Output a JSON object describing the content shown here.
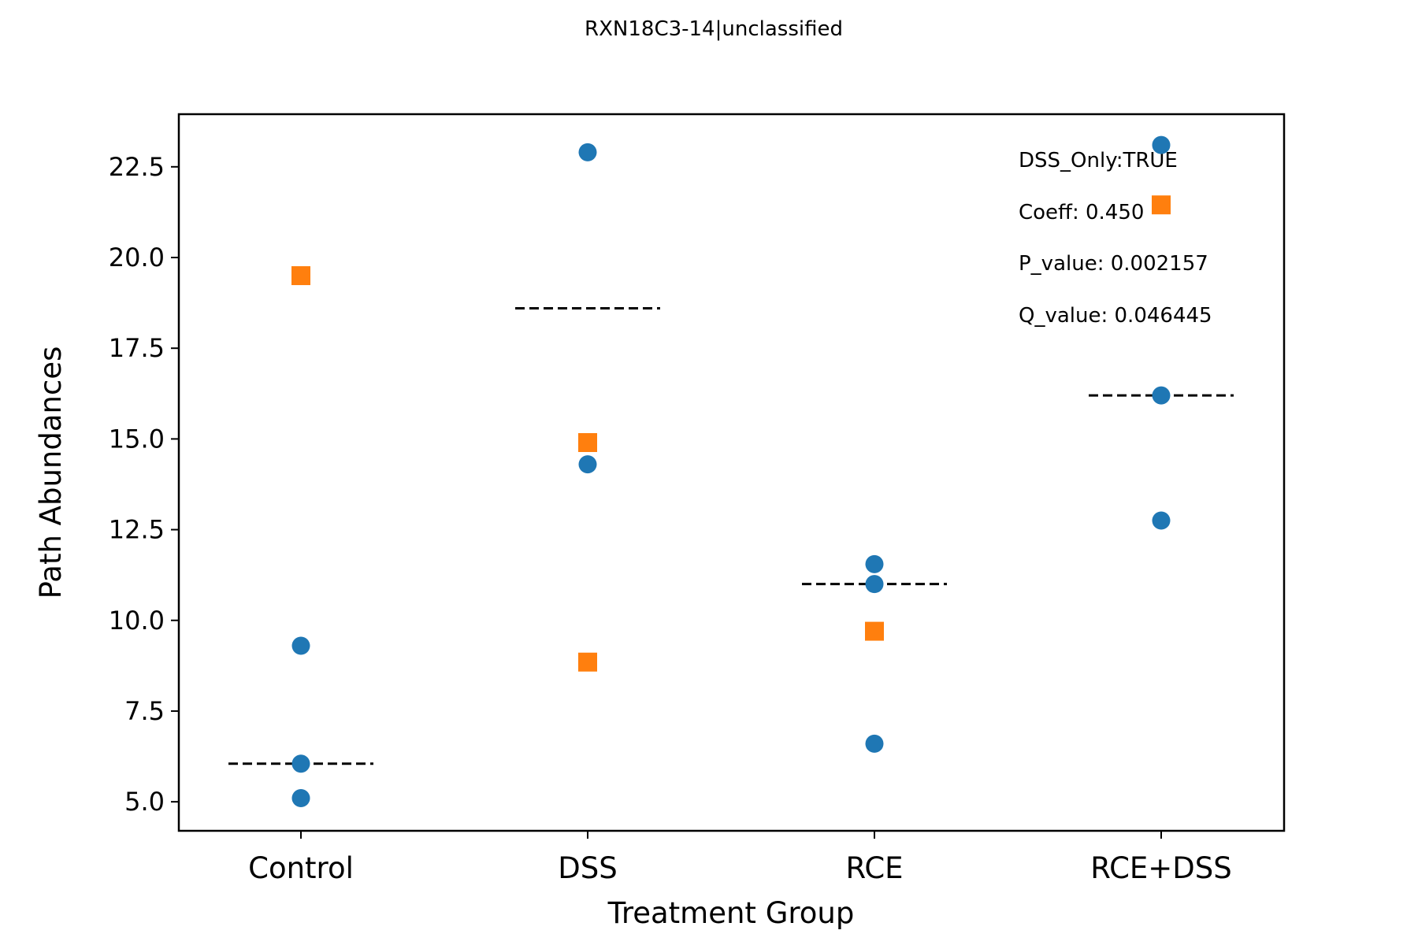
{
  "chart_data": {
    "type": "scatter",
    "title": "RXN18C3-14|unclassified",
    "xlabel": "Treatment Group",
    "ylabel": "Path Abundances",
    "categories": [
      "Control",
      "DSS",
      "RCE",
      "RCE+DSS"
    ],
    "ylim": [
      4.2,
      23.95
    ],
    "yticks": [
      "5.0",
      "7.5",
      "10.0",
      "12.5",
      "15.0",
      "17.5",
      "20.0",
      "22.5"
    ],
    "grid": false,
    "colors": {
      "circle": "#1f77b4",
      "square": "#ff7f0e",
      "mean_line": "#000000"
    },
    "series": [
      {
        "marker": "circle",
        "points": [
          {
            "category": "Control",
            "y": 9.3
          },
          {
            "category": "Control",
            "y": 6.05
          },
          {
            "category": "Control",
            "y": 5.1
          },
          {
            "category": "DSS",
            "y": 22.9
          },
          {
            "category": "DSS",
            "y": 14.3
          },
          {
            "category": "RCE",
            "y": 11.55
          },
          {
            "category": "RCE",
            "y": 11.0
          },
          {
            "category": "RCE",
            "y": 6.6
          },
          {
            "category": "RCE+DSS",
            "y": 23.1
          },
          {
            "category": "RCE+DSS",
            "y": 16.2
          },
          {
            "category": "RCE+DSS",
            "y": 12.75
          }
        ]
      },
      {
        "marker": "square",
        "points": [
          {
            "category": "Control",
            "y": 19.5
          },
          {
            "category": "DSS",
            "y": 14.9
          },
          {
            "category": "DSS",
            "y": 8.85
          },
          {
            "category": "RCE",
            "y": 9.7
          },
          {
            "category": "RCE+DSS",
            "y": 21.45
          }
        ]
      }
    ],
    "group_means": [
      {
        "category": "Control",
        "y": 6.05
      },
      {
        "category": "DSS",
        "y": 18.6
      },
      {
        "category": "RCE",
        "y": 11.0
      },
      {
        "category": "RCE+DSS",
        "y": 16.2
      }
    ],
    "annotations": [
      "DSS_Only:TRUE",
      "Coeff: 0.450",
      "P_value: 0.002157",
      "Q_value: 0.046445"
    ]
  }
}
